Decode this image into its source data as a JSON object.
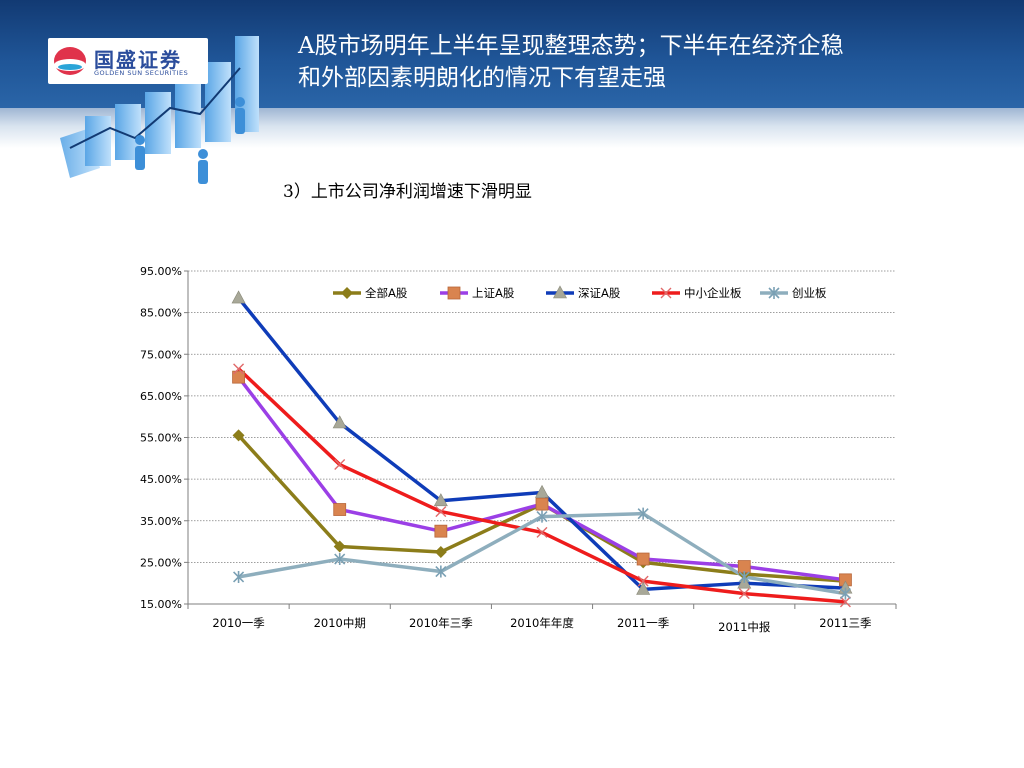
{
  "header": {
    "title_line1": "A股市场明年上半年呈现整理态势；下半年在经济企稳",
    "title_line2": "和外部因素明朗化的情况下有望走强",
    "logo_text": "国盛证券",
    "logo_sub": "GOLDEN SUN SECURITIES"
  },
  "subtitle": "3）上市公司净利润增速下滑明显",
  "chart_data": {
    "type": "line",
    "categories": [
      "2010一季",
      "2010中期",
      "2010年三季",
      "2010年年度",
      "2011一季",
      "2011中报",
      "2011三季"
    ],
    "ylim": [
      0.15,
      0.95
    ],
    "yticks": [
      0.15,
      0.25,
      0.35,
      0.45,
      0.55,
      0.65,
      0.75,
      0.85,
      0.95
    ],
    "ytick_labels": [
      "15.00%",
      "25.00%",
      "35.00%",
      "45.00%",
      "55.00%",
      "65.00%",
      "75.00%",
      "85.00%",
      "95.00%"
    ],
    "grid": true,
    "legend_position": "top",
    "series": [
      {
        "name": "全部A股",
        "color": "#8c7d1a",
        "marker": "diamond",
        "values": [
          0.555,
          0.288,
          0.275,
          0.39,
          0.25,
          0.222,
          0.205
        ]
      },
      {
        "name": "上证A股",
        "color": "#9b3fe6",
        "marker": "square",
        "values": [
          0.695,
          0.377,
          0.325,
          0.39,
          0.258,
          0.24,
          0.208
        ]
      },
      {
        "name": "深证A股",
        "color": "#0f3cb8",
        "marker": "triangle",
        "values": [
          0.885,
          0.585,
          0.398,
          0.418,
          0.185,
          0.2,
          0.188
        ]
      },
      {
        "name": "中小企业板",
        "color": "#ee1c1c",
        "marker": "x",
        "values": [
          0.715,
          0.485,
          0.372,
          0.322,
          0.205,
          0.175,
          0.155
        ]
      },
      {
        "name": "创业板",
        "color": "#8eaebd",
        "marker": "star",
        "values": [
          0.215,
          0.258,
          0.228,
          0.36,
          0.367,
          0.215,
          0.175
        ]
      }
    ]
  }
}
